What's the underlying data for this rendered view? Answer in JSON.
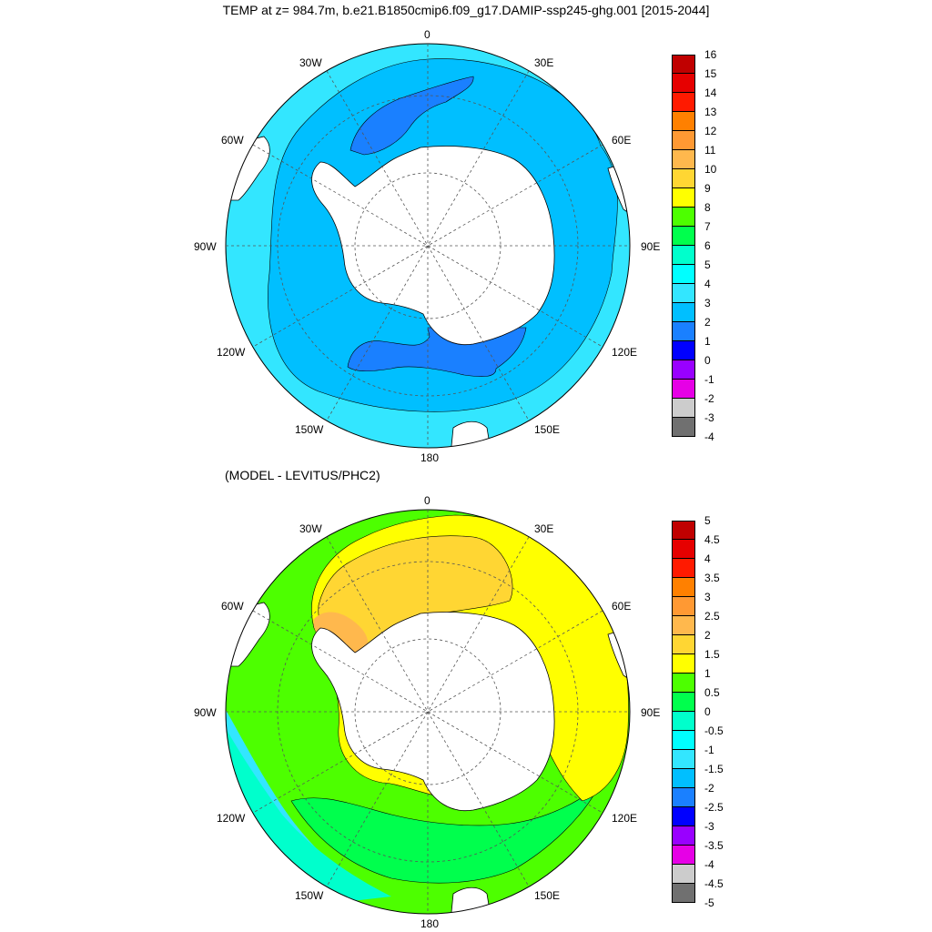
{
  "title": "TEMP at z= 984.7m, b.e21.B1850cmip6.f09_g17.DAMIP-ssp245-ghg.001 [2015-2044]",
  "subtitle": "(MODEL - LEVITUS/PHC2)",
  "lon_labels": {
    "n": "0",
    "ne": "30E",
    "ene": "60E",
    "e": "90E",
    "ese": "120E",
    "se": "150E",
    "s": "180",
    "sw": "150W",
    "wsw": "120W",
    "w": "90W",
    "wnw": "60W",
    "nw": "30W"
  },
  "colorbar_top": {
    "labels": [
      "16",
      "15",
      "14",
      "13",
      "12",
      "11",
      "10",
      "9",
      "8",
      "7",
      "6",
      "5",
      "4",
      "3",
      "2",
      "1",
      "0",
      "-1",
      "-2",
      "-3",
      "-4"
    ],
    "colors": [
      "#c00000",
      "#e60000",
      "#ff1a00",
      "#ff8000",
      "#ff9933",
      "#ffb84d",
      "#ffd633",
      "#ffff00",
      "#4dff00",
      "#00ff4d",
      "#00ffcc",
      "#00ffff",
      "#33e6ff",
      "#00bfff",
      "#1a80ff",
      "#0000ff",
      "#9900ff",
      "#e600e6",
      "#cccccc",
      "#707070"
    ]
  },
  "colorbar_bottom": {
    "labels": [
      "5",
      "4.5",
      "4",
      "3.5",
      "3",
      "2.5",
      "2",
      "1.5",
      "1",
      "0.5",
      "0",
      "-0.5",
      "-1",
      "-1.5",
      "-2",
      "-2.5",
      "-3",
      "-3.5",
      "-4",
      "-4.5",
      "-5"
    ],
    "colors": [
      "#c00000",
      "#e60000",
      "#ff1a00",
      "#ff8000",
      "#ff9933",
      "#ffb84d",
      "#ffd633",
      "#ffff00",
      "#4dff00",
      "#00ff4d",
      "#00ffcc",
      "#00ffff",
      "#33e6ff",
      "#00bfff",
      "#1a80ff",
      "#0000ff",
      "#9900ff",
      "#e600e6",
      "#cccccc",
      "#707070"
    ]
  },
  "field_colors": {
    "ocean_top": "#00bfff",
    "ocean_top_outer": "#33e6ff",
    "cold_top": "#1a80ff",
    "diff_green": "#4dff00",
    "diff_green_dark": "#00ff4d",
    "diff_yellow": "#ffff00",
    "diff_orange": "#ffd633",
    "diff_dark_orange": "#ffb84d",
    "diff_cyan": "#33e6ff",
    "diff_teal": "#00ffcc",
    "land": "#ffffff"
  }
}
